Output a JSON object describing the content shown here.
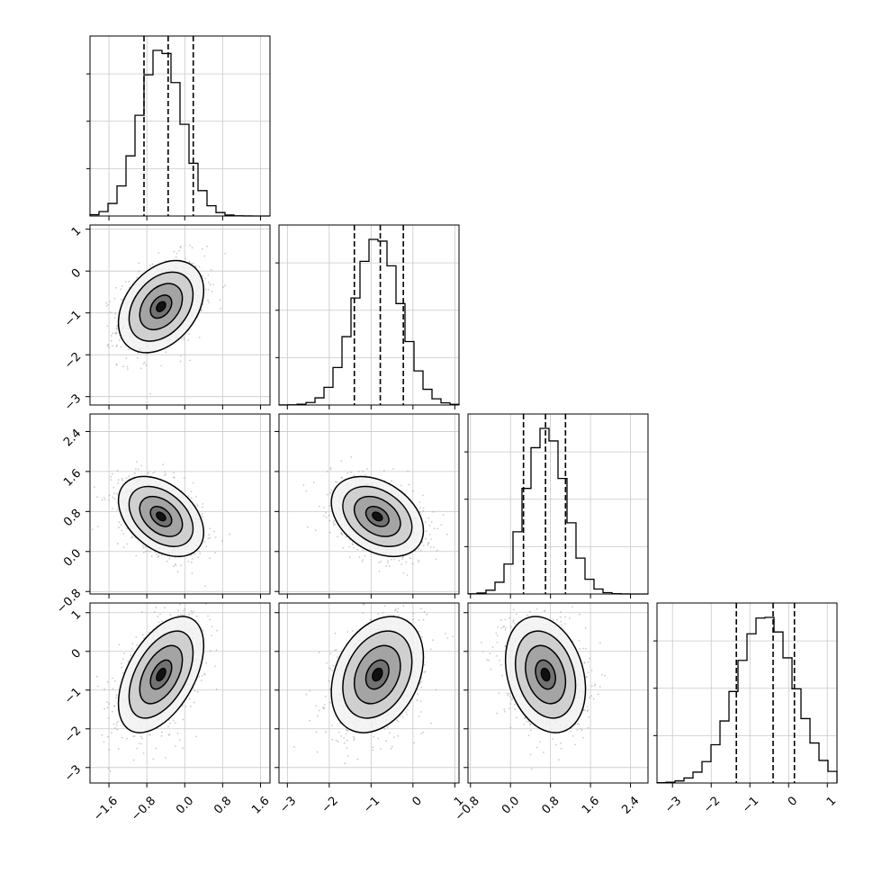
{
  "chart_data": {
    "type": "corner",
    "variables": [
      {
        "range": [
          -2.0,
          1.8
        ],
        "ticks": [
          "−1.6",
          "−0.8",
          "0.0",
          "0.8",
          "1.6"
        ],
        "tick_values": [
          -1.6,
          -0.8,
          0.0,
          0.8,
          1.6
        ],
        "mean": -0.5,
        "sd": 0.45,
        "quantiles": [
          -0.86,
          -0.35,
          0.18
        ]
      },
      {
        "range": [
          -3.2,
          1.1
        ],
        "ticks": [
          "−3",
          "−2",
          "−1",
          "0",
          "1"
        ],
        "tick_values": [
          -3,
          -2,
          -1,
          0,
          1
        ],
        "mean": -0.85,
        "sd": 0.55,
        "quantiles": [
          -1.4,
          -0.78,
          -0.23
        ]
      },
      {
        "range": [
          -0.85,
          2.75
        ],
        "ticks": [
          "−0.8",
          "0.0",
          "0.8",
          "1.6",
          "2.4"
        ],
        "tick_values": [
          -0.8,
          0.0,
          0.8,
          1.6,
          2.4
        ],
        "mean": 0.7,
        "sd": 0.4,
        "quantiles": [
          0.26,
          0.7,
          1.1
        ]
      },
      {
        "range": [
          -3.4,
          1.25
        ],
        "ticks": [
          "−3",
          "−2",
          "−1",
          "0",
          "1"
        ],
        "tick_values": [
          -3,
          -2,
          -1,
          0,
          1
        ],
        "mean": -0.6,
        "sd": 0.75,
        "quantiles": [
          -1.35,
          -0.4,
          0.15
        ]
      }
    ],
    "correlations": [
      [
        1.0,
        0.35,
        -0.4,
        0.5
      ],
      [
        0.35,
        1.0,
        -0.35,
        0.3
      ],
      [
        -0.4,
        -0.35,
        1.0,
        -0.25
      ],
      [
        0.5,
        0.3,
        -0.25,
        1.0
      ]
    ],
    "histogram_bins": 20,
    "quantile_line_style": "dashed",
    "grid": true,
    "title": "",
    "xlabel": "",
    "ylabel": ""
  }
}
